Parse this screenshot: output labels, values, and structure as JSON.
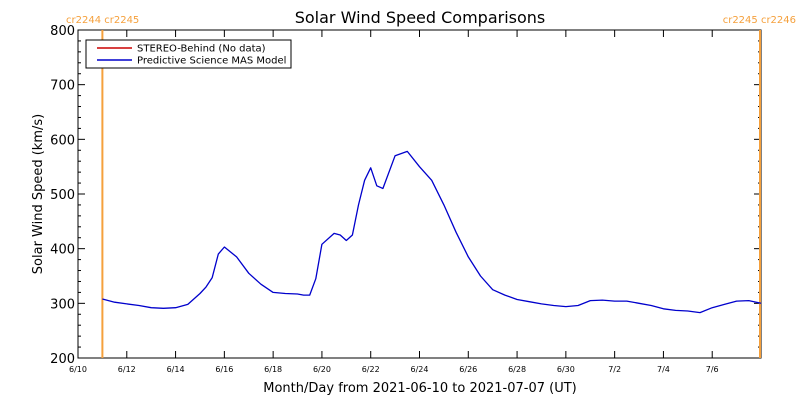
{
  "colors": {
    "stereo_behind": "#cc0000",
    "mas_model": "#0000cc",
    "carrington_marker": "#f5a03c",
    "axis": "#000000"
  },
  "carrington_labels": {
    "left": "cr2244 cr2245",
    "right": "cr2245 cr2246"
  },
  "chart_data": {
    "type": "line",
    "title": "Solar Wind Speed Comparisons",
    "xlabel": "Month/Day from 2021-06-10 to 2021-07-07 (UT)",
    "ylabel": "Solar Wind Speed (km/s)",
    "xlim": [
      "2021-06-10",
      "2021-07-08"
    ],
    "ylim": [
      200,
      800
    ],
    "yticks": [
      200,
      300,
      400,
      500,
      600,
      700,
      800
    ],
    "xticks": [
      {
        "date": "2021-06-10",
        "label": "6/10"
      },
      {
        "date": "2021-06-12",
        "label": "6/12"
      },
      {
        "date": "2021-06-14",
        "label": "6/14"
      },
      {
        "date": "2021-06-16",
        "label": "6/16"
      },
      {
        "date": "2021-06-18",
        "label": "6/18"
      },
      {
        "date": "2021-06-20",
        "label": "6/20"
      },
      {
        "date": "2021-06-22",
        "label": "6/22"
      },
      {
        "date": "2021-06-24",
        "label": "6/24"
      },
      {
        "date": "2021-06-26",
        "label": "6/26"
      },
      {
        "date": "2021-06-28",
        "label": "6/28"
      },
      {
        "date": "2021-06-30",
        "label": "6/30"
      },
      {
        "date": "2021-07-02",
        "label": "7/2"
      },
      {
        "date": "2021-07-04",
        "label": "7/4"
      },
      {
        "date": "2021-07-06",
        "label": "7/6"
      }
    ],
    "carrington_boundaries": [
      "2021-06-11",
      "2021-07-08"
    ],
    "legend": {
      "position": "top-left",
      "entries": [
        "STEREO-Behind (No data)",
        "Predictive Science MAS Model"
      ]
    },
    "series": [
      {
        "name": "STEREO-Behind (No data)",
        "x": [],
        "values": []
      },
      {
        "name": "Predictive Science MAS Model",
        "x": [
          "2021-06-11 00:00",
          "2021-06-11 12:00",
          "2021-06-12 00:00",
          "2021-06-12 12:00",
          "2021-06-13 00:00",
          "2021-06-13 12:00",
          "2021-06-14 00:00",
          "2021-06-14 12:00",
          "2021-06-15 00:00",
          "2021-06-15 06:00",
          "2021-06-15 12:00",
          "2021-06-15 18:00",
          "2021-06-16 00:00",
          "2021-06-16 12:00",
          "2021-06-17 00:00",
          "2021-06-17 12:00",
          "2021-06-18 00:00",
          "2021-06-18 12:00",
          "2021-06-19 00:00",
          "2021-06-19 06:00",
          "2021-06-19 12:00",
          "2021-06-19 18:00",
          "2021-06-20 00:00",
          "2021-06-20 12:00",
          "2021-06-20 18:00",
          "2021-06-21 00:00",
          "2021-06-21 06:00",
          "2021-06-21 12:00",
          "2021-06-21 18:00",
          "2021-06-22 00:00",
          "2021-06-22 06:00",
          "2021-06-22 12:00",
          "2021-06-23 00:00",
          "2021-06-23 12:00",
          "2021-06-24 00:00",
          "2021-06-24 12:00",
          "2021-06-25 00:00",
          "2021-06-25 12:00",
          "2021-06-26 00:00",
          "2021-06-26 12:00",
          "2021-06-27 00:00",
          "2021-06-27 12:00",
          "2021-06-28 00:00",
          "2021-06-28 12:00",
          "2021-06-29 00:00",
          "2021-06-29 12:00",
          "2021-06-30 00:00",
          "2021-06-30 12:00",
          "2021-07-01 00:00",
          "2021-07-01 12:00",
          "2021-07-02 00:00",
          "2021-07-02 12:00",
          "2021-07-03 00:00",
          "2021-07-03 12:00",
          "2021-07-04 00:00",
          "2021-07-04 12:00",
          "2021-07-05 00:00",
          "2021-07-05 12:00",
          "2021-07-06 00:00",
          "2021-07-06 12:00",
          "2021-07-07 00:00",
          "2021-07-07 12:00",
          "2021-07-08 00:00"
        ],
        "values": [
          308,
          302,
          299,
          296,
          292,
          291,
          292,
          298,
          318,
          330,
          347,
          390,
          403,
          385,
          355,
          335,
          320,
          318,
          317,
          315,
          315,
          345,
          408,
          428,
          425,
          415,
          425,
          480,
          525,
          548,
          515,
          510,
          570,
          578,
          550,
          525,
          480,
          430,
          385,
          350,
          325,
          315,
          307,
          303,
          299,
          296,
          294,
          296,
          305,
          306,
          304,
          304,
          300,
          296,
          290,
          287,
          286,
          283,
          292,
          298,
          304,
          305,
          300
        ]
      }
    ]
  }
}
